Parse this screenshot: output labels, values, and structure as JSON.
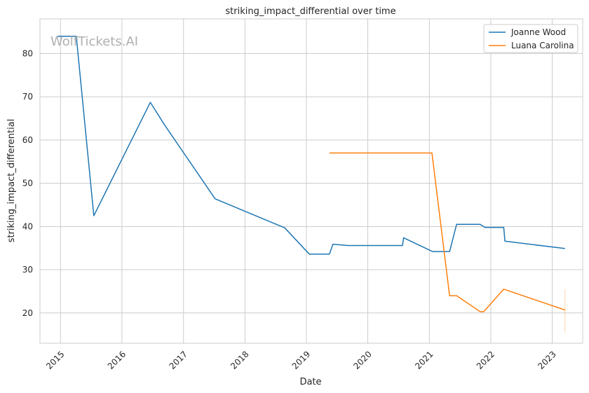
{
  "watermark": "WolfTickets.AI",
  "chart_data": {
    "type": "line",
    "title": "striking_impact_differential over time",
    "xlabel": "Date",
    "ylabel": "striking_impact_differential",
    "x_ticks": [
      "2015",
      "2016",
      "2017",
      "2018",
      "2019",
      "2020",
      "2021",
      "2022",
      "2023"
    ],
    "y_ticks": [
      20,
      30,
      40,
      50,
      60,
      70,
      80
    ],
    "xlim": [
      "2014-09-01",
      "2023-07-01"
    ],
    "ylim": [
      13,
      88
    ],
    "grid": true,
    "legend_position": "top-right",
    "series": [
      {
        "name": "Joanne Wood",
        "color": "#1f77b4",
        "points": [
          [
            "2014-12-13",
            84.0
          ],
          [
            "2015-04-05",
            84.0
          ],
          [
            "2015-07-18",
            42.5
          ],
          [
            "2016-06-18",
            68.7
          ],
          [
            "2016-09-10",
            63.5
          ],
          [
            "2017-07-08",
            46.4
          ],
          [
            "2018-08-25",
            39.7
          ],
          [
            "2019-01-19",
            33.6
          ],
          [
            "2019-05-18",
            33.6
          ],
          [
            "2019-06-08",
            35.9
          ],
          [
            "2019-09-07",
            35.6
          ],
          [
            "2020-07-25",
            35.6
          ],
          [
            "2020-08-01",
            37.4
          ],
          [
            "2021-01-20",
            34.2
          ],
          [
            "2021-05-01",
            34.2
          ],
          [
            "2021-06-12",
            40.5
          ],
          [
            "2021-10-30",
            40.5
          ],
          [
            "2021-11-27",
            39.8
          ],
          [
            "2022-03-19",
            39.8
          ],
          [
            "2022-03-26",
            36.6
          ],
          [
            "2023-03-18",
            34.9
          ]
        ]
      },
      {
        "name": "Luana Carolina",
        "color": "#ff7f0e",
        "points": [
          [
            "2019-05-18",
            57.0
          ],
          [
            "2021-01-16",
            57.0
          ],
          [
            "2021-05-01",
            24.0
          ],
          [
            "2021-06-12",
            24.0
          ],
          [
            "2021-10-30",
            20.3
          ],
          [
            "2021-11-20",
            20.3
          ],
          [
            "2022-03-19",
            25.5
          ],
          [
            "2023-03-18",
            20.7
          ]
        ]
      }
    ]
  }
}
